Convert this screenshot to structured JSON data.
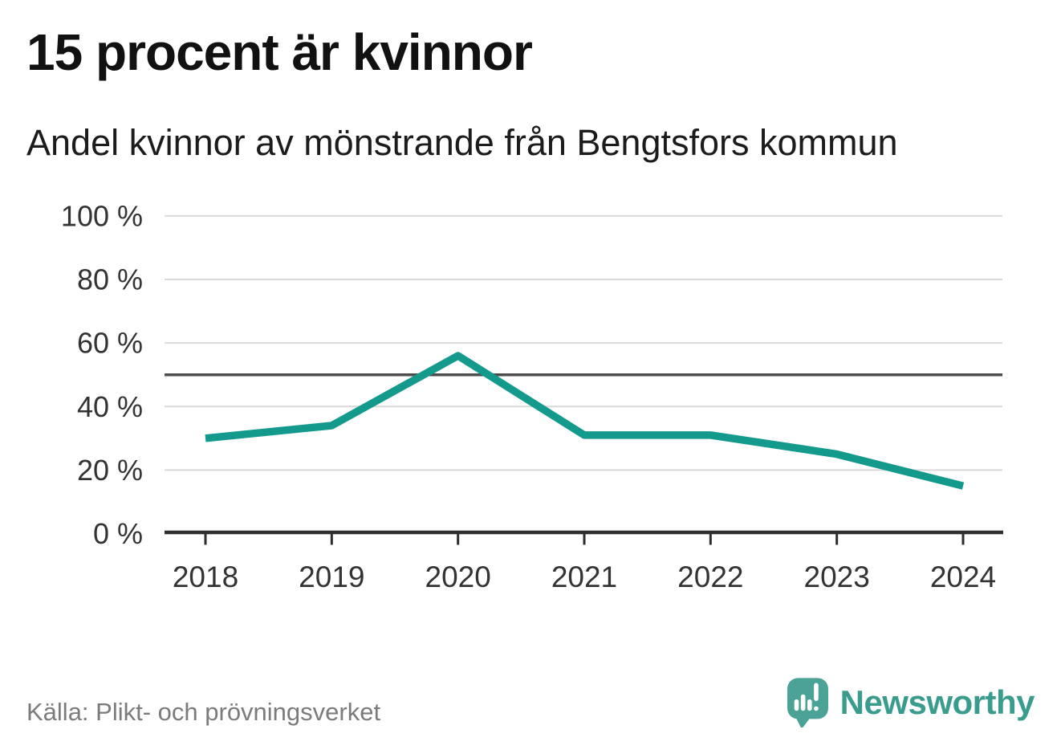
{
  "header": {
    "title": "15 procent är kvinnor",
    "subtitle": "Andel kvinnor av mönstrande från Bengtsfors kommun"
  },
  "chart_data": {
    "type": "line",
    "categories": [
      "2018",
      "2019",
      "2020",
      "2021",
      "2022",
      "2023",
      "2024"
    ],
    "series": [
      {
        "name": "Andel kvinnor av mönstrande",
        "values": [
          30,
          34,
          56,
          31,
          31,
          25,
          15
        ]
      }
    ],
    "unit": "%",
    "ylim": [
      0,
      100
    ],
    "yticks": [
      0,
      20,
      40,
      60,
      80,
      100
    ],
    "ytick_labels": [
      "0 %",
      "20 %",
      "40 %",
      "60 %",
      "80 %",
      "100 %"
    ],
    "reference_line_value": 50,
    "grid": "horizontal-only",
    "legend": "none",
    "colors": {
      "line": "#149A8C",
      "gridline": "#d9d9d9",
      "reference_line": "#4d4d4d",
      "axis": "#2e2e2e",
      "tick_label": "#333333"
    }
  },
  "footer": {
    "source": "Källa: Plikt- och prövningsverket",
    "brand": "Newsworthy",
    "brand_color": "#3a9c8d",
    "brand_icon": "speech-bubble-bar-chart-exclamation",
    "brand_icon_color": "#4aa396"
  }
}
